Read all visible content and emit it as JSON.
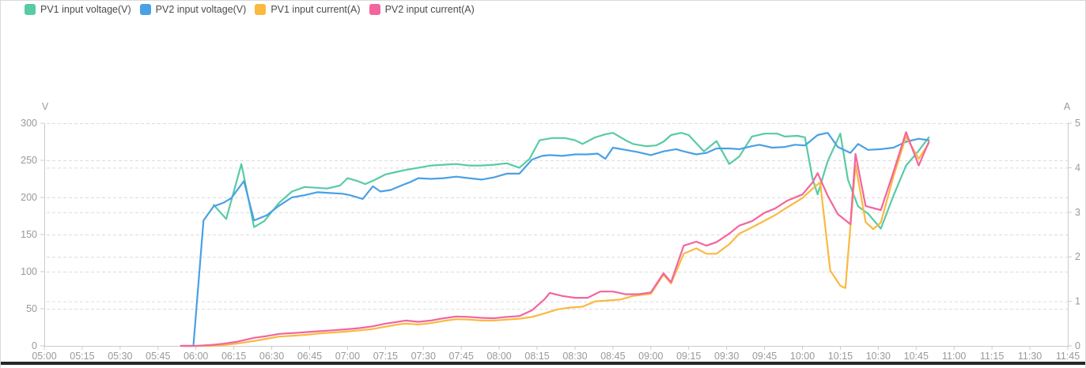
{
  "colors": {
    "pv1_voltage": "#58CBA4",
    "pv2_voltage": "#4AA0E5",
    "pv1_current": "#FAB941",
    "pv2_current": "#F3659D",
    "grid_line": "#dcdcdc",
    "axis_line": "#cccccc",
    "tick_label": "#999999",
    "legend_text": "#4a4a4a",
    "panel_bottom_edge": "#262626"
  },
  "legend": {
    "items": [
      {
        "label": "PV1 input voltage(V)",
        "series": "pv1_voltage"
      },
      {
        "label": "PV2 input voltage(V)",
        "series": "pv2_voltage"
      },
      {
        "label": "PV1 input current(A)",
        "series": "pv1_current"
      },
      {
        "label": "PV2 input current(A)",
        "series": "pv2_current"
      }
    ]
  },
  "chart_data": {
    "type": "line",
    "grid": "dashed, drawn for both V and A axis intervals",
    "legend_position": "top-left",
    "x_axis": {
      "unit": "time of day",
      "tick_interval_minutes": 15,
      "ticks": [
        "05:00",
        "05:15",
        "05:30",
        "05:45",
        "06:00",
        "06:15",
        "06:30",
        "06:45",
        "07:00",
        "07:15",
        "07:30",
        "07:45",
        "08:00",
        "08:15",
        "08:30",
        "08:45",
        "09:00",
        "09:15",
        "09:30",
        "09:45",
        "10:00",
        "10:15",
        "10:30",
        "10:45",
        "11:00",
        "11:15",
        "11:30",
        "11:45"
      ]
    },
    "left_axis": {
      "name": "V",
      "min": 0,
      "max": 300,
      "interval": 50,
      "ticks": [
        "0",
        "50",
        "100",
        "150",
        "200",
        "250",
        "300"
      ]
    },
    "right_axis": {
      "name": "A",
      "min": 0,
      "max": 5,
      "interval": 1,
      "ticks": [
        "0",
        "1",
        "2",
        "3",
        "4",
        "5"
      ]
    },
    "x_unit_note": "series points are [minutes after 05:00, value]; data runs ~05:54 to 10:50",
    "series": [
      {
        "name": "PV1 input voltage(V)",
        "axis": "V",
        "color_key": "pv1_voltage",
        "points": [
          [
            67,
            190
          ],
          [
            72,
            171
          ],
          [
            78,
            245
          ],
          [
            83,
            160
          ],
          [
            87,
            168
          ],
          [
            93,
            193
          ],
          [
            98,
            208
          ],
          [
            103,
            214
          ],
          [
            108,
            213
          ],
          [
            112,
            212
          ],
          [
            117,
            216
          ],
          [
            120,
            226
          ],
          [
            124,
            222
          ],
          [
            127,
            218
          ],
          [
            131,
            224
          ],
          [
            135,
            231
          ],
          [
            139,
            234
          ],
          [
            143,
            237
          ],
          [
            148,
            240
          ],
          [
            153,
            243
          ],
          [
            158,
            244
          ],
          [
            163,
            245
          ],
          [
            168,
            243
          ],
          [
            173,
            243
          ],
          [
            178,
            244
          ],
          [
            183,
            246
          ],
          [
            188,
            240
          ],
          [
            192,
            252
          ],
          [
            196,
            277
          ],
          [
            201,
            280
          ],
          [
            206,
            280
          ],
          [
            210,
            277
          ],
          [
            213,
            272
          ],
          [
            218,
            281
          ],
          [
            222,
            285
          ],
          [
            225,
            287
          ],
          [
            230,
            277
          ],
          [
            233,
            272
          ],
          [
            238,
            269
          ],
          [
            242,
            270
          ],
          [
            245,
            275
          ],
          [
            248,
            284
          ],
          [
            252,
            287
          ],
          [
            255,
            284
          ],
          [
            258,
            273
          ],
          [
            261,
            262
          ],
          [
            266,
            276
          ],
          [
            271,
            245
          ],
          [
            275,
            255
          ],
          [
            280,
            282
          ],
          [
            285,
            286
          ],
          [
            290,
            286
          ],
          [
            293,
            282
          ],
          [
            298,
            283
          ],
          [
            301,
            281
          ],
          [
            304,
            225
          ],
          [
            306,
            204
          ],
          [
            310,
            249
          ],
          [
            315,
            286
          ],
          [
            318,
            224
          ],
          [
            322,
            188
          ],
          [
            326,
            178
          ],
          [
            331,
            158
          ],
          [
            336,
            202
          ],
          [
            341,
            243
          ],
          [
            346,
            263
          ],
          [
            350,
            281
          ]
        ]
      },
      {
        "name": "PV2 input voltage(V)",
        "axis": "V",
        "color_key": "pv2_voltage",
        "points": [
          [
            55,
            0
          ],
          [
            59,
            0
          ],
          [
            63,
            169
          ],
          [
            67,
            188
          ],
          [
            71,
            193
          ],
          [
            74,
            199
          ],
          [
            79,
            222
          ],
          [
            83,
            169
          ],
          [
            88,
            176
          ],
          [
            93,
            189
          ],
          [
            98,
            200
          ],
          [
            103,
            203
          ],
          [
            108,
            207
          ],
          [
            113,
            206
          ],
          [
            118,
            205
          ],
          [
            121,
            203
          ],
          [
            126,
            198
          ],
          [
            130,
            215
          ],
          [
            133,
            208
          ],
          [
            137,
            210
          ],
          [
            142,
            217
          ],
          [
            145,
            221
          ],
          [
            148,
            226
          ],
          [
            153,
            225
          ],
          [
            158,
            226
          ],
          [
            163,
            228
          ],
          [
            168,
            226
          ],
          [
            173,
            224
          ],
          [
            178,
            227
          ],
          [
            183,
            232
          ],
          [
            188,
            232
          ],
          [
            193,
            251
          ],
          [
            197,
            256
          ],
          [
            200,
            257
          ],
          [
            205,
            256
          ],
          [
            210,
            258
          ],
          [
            215,
            258
          ],
          [
            219,
            259
          ],
          [
            222,
            252
          ],
          [
            225,
            267
          ],
          [
            230,
            264
          ],
          [
            235,
            261
          ],
          [
            240,
            257
          ],
          [
            245,
            262
          ],
          [
            250,
            265
          ],
          [
            253,
            262
          ],
          [
            258,
            258
          ],
          [
            262,
            260
          ],
          [
            266,
            266
          ],
          [
            271,
            266
          ],
          [
            275,
            265
          ],
          [
            280,
            269
          ],
          [
            283,
            271
          ],
          [
            288,
            267
          ],
          [
            293,
            268
          ],
          [
            297,
            271
          ],
          [
            301,
            270
          ],
          [
            306,
            284
          ],
          [
            310,
            287
          ],
          [
            314,
            268
          ],
          [
            319,
            260
          ],
          [
            322,
            272
          ],
          [
            326,
            264
          ],
          [
            331,
            265
          ],
          [
            336,
            267
          ],
          [
            341,
            275
          ],
          [
            346,
            279
          ],
          [
            350,
            277
          ]
        ]
      },
      {
        "name": "PV1 input current(A)",
        "axis": "A",
        "color_key": "pv1_current",
        "points": [
          [
            54,
            0
          ],
          [
            60,
            0
          ],
          [
            66,
            0
          ],
          [
            71,
            0.02
          ],
          [
            76,
            0.05
          ],
          [
            83,
            0.11
          ],
          [
            88,
            0.16
          ],
          [
            93,
            0.21
          ],
          [
            99,
            0.23
          ],
          [
            104,
            0.25
          ],
          [
            109,
            0.28
          ],
          [
            114,
            0.3
          ],
          [
            119,
            0.32
          ],
          [
            125,
            0.35
          ],
          [
            130,
            0.38
          ],
          [
            135,
            0.43
          ],
          [
            140,
            0.48
          ],
          [
            143,
            0.5
          ],
          [
            148,
            0.48
          ],
          [
            153,
            0.51
          ],
          [
            158,
            0.56
          ],
          [
            163,
            0.6
          ],
          [
            168,
            0.59
          ],
          [
            173,
            0.57
          ],
          [
            178,
            0.57
          ],
          [
            183,
            0.59
          ],
          [
            188,
            0.61
          ],
          [
            193,
            0.65
          ],
          [
            198,
            0.73
          ],
          [
            203,
            0.82
          ],
          [
            208,
            0.86
          ],
          [
            213,
            0.88
          ],
          [
            218,
            1.0
          ],
          [
            223,
            1.02
          ],
          [
            228,
            1.04
          ],
          [
            233,
            1.12
          ],
          [
            237,
            1.15
          ],
          [
            240,
            1.17
          ],
          [
            245,
            1.6
          ],
          [
            248,
            1.4
          ],
          [
            253,
            2.07
          ],
          [
            258,
            2.19
          ],
          [
            262,
            2.07
          ],
          [
            266,
            2.07
          ],
          [
            271,
            2.28
          ],
          [
            275,
            2.52
          ],
          [
            280,
            2.66
          ],
          [
            285,
            2.81
          ],
          [
            289,
            2.93
          ],
          [
            294,
            3.11
          ],
          [
            300,
            3.32
          ],
          [
            304,
            3.53
          ],
          [
            307,
            3.67
          ],
          [
            311,
            1.69
          ],
          [
            315,
            1.35
          ],
          [
            317,
            1.3
          ],
          [
            321,
            4.07
          ],
          [
            325,
            2.78
          ],
          [
            328,
            2.62
          ],
          [
            331,
            2.77
          ],
          [
            336,
            3.8
          ],
          [
            341,
            4.7
          ],
          [
            346,
            4.2
          ],
          [
            350,
            4.55
          ]
        ]
      },
      {
        "name": "PV2 input current(A)",
        "axis": "A",
        "color_key": "pv2_current",
        "points": [
          [
            54,
            0
          ],
          [
            60,
            0
          ],
          [
            66,
            0.02
          ],
          [
            71,
            0.05
          ],
          [
            76,
            0.09
          ],
          [
            83,
            0.18
          ],
          [
            88,
            0.22
          ],
          [
            93,
            0.27
          ],
          [
            99,
            0.29
          ],
          [
            104,
            0.31
          ],
          [
            109,
            0.33
          ],
          [
            114,
            0.35
          ],
          [
            119,
            0.37
          ],
          [
            125,
            0.4
          ],
          [
            130,
            0.44
          ],
          [
            135,
            0.5
          ],
          [
            140,
            0.54
          ],
          [
            143,
            0.57
          ],
          [
            148,
            0.54
          ],
          [
            153,
            0.57
          ],
          [
            158,
            0.62
          ],
          [
            163,
            0.66
          ],
          [
            168,
            0.65
          ],
          [
            173,
            0.63
          ],
          [
            178,
            0.62
          ],
          [
            183,
            0.65
          ],
          [
            188,
            0.67
          ],
          [
            193,
            0.8
          ],
          [
            198,
            1.05
          ],
          [
            200,
            1.19
          ],
          [
            205,
            1.12
          ],
          [
            210,
            1.08
          ],
          [
            215,
            1.08
          ],
          [
            220,
            1.22
          ],
          [
            225,
            1.22
          ],
          [
            230,
            1.16
          ],
          [
            235,
            1.16
          ],
          [
            240,
            1.2
          ],
          [
            245,
            1.63
          ],
          [
            248,
            1.43
          ],
          [
            253,
            2.25
          ],
          [
            258,
            2.34
          ],
          [
            262,
            2.25
          ],
          [
            266,
            2.33
          ],
          [
            271,
            2.52
          ],
          [
            275,
            2.7
          ],
          [
            280,
            2.8
          ],
          [
            285,
            2.99
          ],
          [
            289,
            3.08
          ],
          [
            294,
            3.26
          ],
          [
            300,
            3.4
          ],
          [
            304,
            3.67
          ],
          [
            306,
            3.88
          ],
          [
            310,
            3.37
          ],
          [
            314,
            2.96
          ],
          [
            319,
            2.73
          ],
          [
            321,
            4.31
          ],
          [
            325,
            3.14
          ],
          [
            331,
            3.05
          ],
          [
            336,
            3.9
          ],
          [
            341,
            4.8
          ],
          [
            346,
            4.05
          ],
          [
            350,
            4.58
          ]
        ]
      }
    ]
  }
}
